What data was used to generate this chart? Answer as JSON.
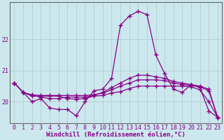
{
  "xlabel": "Windchill (Refroidissement éolien,°C)",
  "background_color": "#cce8ee",
  "grid_color": "#aacccc",
  "line_color": "#880088",
  "x_hours": [
    0,
    1,
    2,
    3,
    4,
    5,
    6,
    7,
    8,
    9,
    10,
    11,
    12,
    13,
    14,
    15,
    16,
    17,
    18,
    19,
    20,
    21,
    22,
    23
  ],
  "series": [
    [
      20.6,
      20.3,
      20.0,
      20.1,
      19.8,
      19.75,
      19.75,
      19.55,
      20.0,
      20.35,
      20.4,
      20.75,
      22.45,
      22.75,
      22.9,
      22.8,
      21.5,
      20.9,
      20.4,
      20.3,
      20.55,
      20.45,
      19.7,
      19.5
    ],
    [
      20.6,
      20.3,
      20.2,
      20.15,
      20.1,
      20.1,
      20.15,
      20.15,
      20.15,
      20.2,
      20.3,
      20.45,
      20.6,
      20.75,
      20.85,
      20.85,
      20.8,
      20.75,
      20.65,
      20.6,
      20.55,
      20.5,
      20.4,
      19.5
    ],
    [
      20.6,
      20.3,
      20.22,
      20.2,
      20.2,
      20.2,
      20.2,
      20.2,
      20.2,
      20.22,
      20.28,
      20.38,
      20.5,
      20.6,
      20.7,
      20.7,
      20.7,
      20.68,
      20.6,
      20.55,
      20.52,
      20.48,
      20.35,
      19.5
    ],
    [
      20.6,
      20.3,
      20.18,
      20.18,
      20.18,
      20.18,
      20.1,
      20.08,
      20.1,
      20.18,
      20.2,
      20.28,
      20.32,
      20.42,
      20.5,
      20.5,
      20.5,
      20.5,
      20.5,
      20.5,
      20.48,
      20.38,
      20.0,
      19.5
    ]
  ],
  "ylim": [
    19.3,
    23.2
  ],
  "yticks": [
    20,
    21,
    22
  ],
  "xticks": [
    0,
    1,
    2,
    3,
    4,
    5,
    6,
    7,
    8,
    9,
    10,
    11,
    12,
    13,
    14,
    15,
    16,
    17,
    18,
    19,
    20,
    21,
    22,
    23
  ],
  "marker": "+",
  "markersize": 4,
  "markeredgewidth": 1.0,
  "linewidth": 0.9,
  "xlabel_fontsize": 6.5,
  "tick_fontsize": 6,
  "label_color": "#880088",
  "spine_color": "#666666"
}
